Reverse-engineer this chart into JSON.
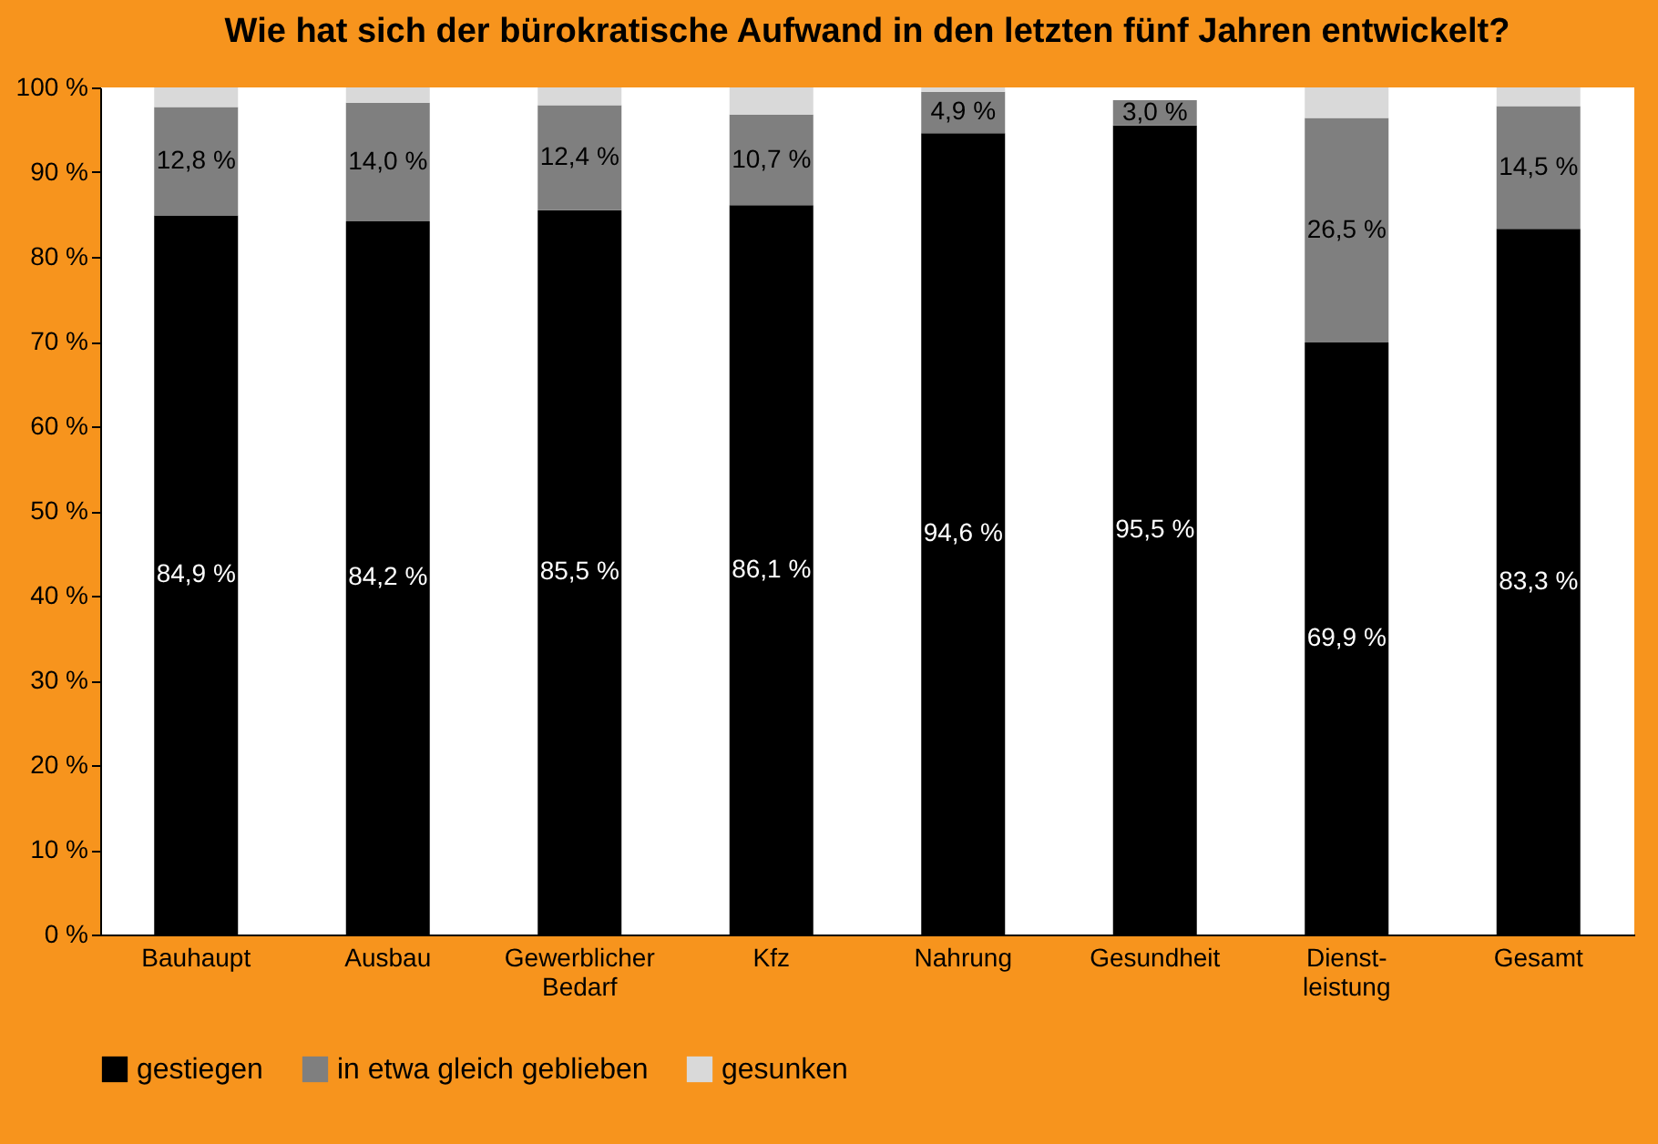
{
  "chart_data": {
    "type": "bar",
    "title": "Wie hat sich der bürokratische Aufwand in den letzten fünf Jahren entwickelt?",
    "stacked": true,
    "legend": "bottom",
    "grid": false,
    "categories": [
      "Bauhaupt",
      "Ausbau",
      "Gewerblicher\nBedarf",
      "Kfz",
      "Nahrung",
      "Gesundheit",
      "Dienst-\nleistung",
      "Gesamt"
    ],
    "ylim": [
      0,
      100
    ],
    "yticks": [
      {
        "value": 0,
        "label": "0 %"
      },
      {
        "value": 10,
        "label": "10 %"
      },
      {
        "value": 20,
        "label": "20 %"
      },
      {
        "value": 30,
        "label": "30 %"
      },
      {
        "value": 40,
        "label": "40 %"
      },
      {
        "value": 50,
        "label": "50 %"
      },
      {
        "value": 60,
        "label": "60 %"
      },
      {
        "value": 70,
        "label": "70 %"
      },
      {
        "value": 80,
        "label": "80 %"
      },
      {
        "value": 90,
        "label": "90 %"
      },
      {
        "value": 100,
        "label": "100 %"
      }
    ],
    "series": [
      {
        "name": "gestiegen",
        "color": "#000000",
        "values": [
          84.9,
          84.2,
          85.5,
          86.1,
          94.6,
          95.5,
          69.9,
          83.3
        ],
        "value_labels": [
          "84,9 %",
          "84,2 %",
          "85,5 %",
          "86,1 %",
          "94,6 %",
          "95,5 %",
          "69,9 %",
          "83,3 %"
        ]
      },
      {
        "name": "in etwa gleich geblieben",
        "color": "#7f7f7f",
        "values": [
          12.8,
          14.0,
          12.4,
          10.7,
          4.9,
          3.0,
          26.5,
          14.5
        ],
        "value_labels": [
          "12,8 %",
          "14,0 %",
          "12,4 %",
          "10,7 %",
          "4,9 %",
          "3,0 %",
          "26,5 %",
          "14,5 %"
        ]
      },
      {
        "name": "gesunken",
        "color": "#d9d9d9",
        "values": [
          2.3,
          1.8,
          2.1,
          3.2,
          0.5,
          null,
          3.6,
          2.2
        ]
      }
    ]
  }
}
